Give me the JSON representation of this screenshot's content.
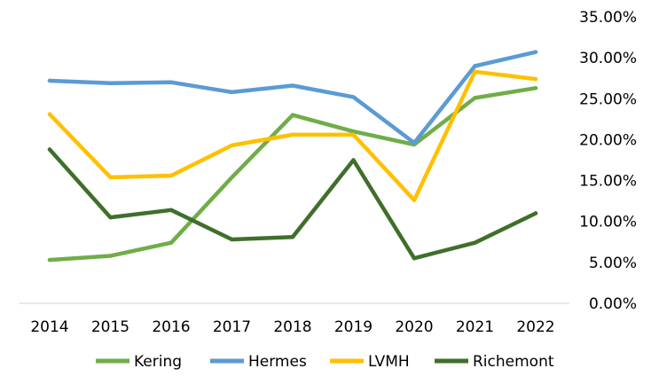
{
  "chart_data": {
    "type": "line",
    "title": "",
    "xlabel": "",
    "ylabel": "",
    "x": [
      "2014",
      "2015",
      "2016",
      "2017",
      "2018",
      "2019",
      "2020",
      "2021",
      "2022"
    ],
    "ylim": [
      0,
      35
    ],
    "y_ticks": [
      0,
      5,
      10,
      15,
      20,
      25,
      30,
      35
    ],
    "y_tick_labels": [
      "0.00%",
      "5.00%",
      "10.00%",
      "15.00%",
      "20.00%",
      "25.00%",
      "30.00%",
      "35.00%"
    ],
    "y_axis_position": "right",
    "grid": false,
    "legend_position": "bottom",
    "series": [
      {
        "name": "Kering",
        "color": "#70AD47",
        "values": [
          5.3,
          5.8,
          7.4,
          15.4,
          23.0,
          21.0,
          19.4,
          25.1,
          26.3
        ]
      },
      {
        "name": "Hermes",
        "color": "#5B9BD5",
        "values": [
          27.2,
          26.9,
          27.0,
          25.8,
          26.6,
          25.2,
          19.6,
          29.0,
          30.7
        ]
      },
      {
        "name": "LVMH",
        "color": "#FFC000",
        "values": [
          23.1,
          15.4,
          15.6,
          19.3,
          20.6,
          20.6,
          12.6,
          28.3,
          27.4
        ]
      },
      {
        "name": "Richemont",
        "color": "#3F6F2A",
        "values": [
          18.8,
          10.5,
          11.4,
          7.8,
          8.1,
          17.5,
          5.5,
          7.4,
          11.0
        ]
      }
    ]
  }
}
